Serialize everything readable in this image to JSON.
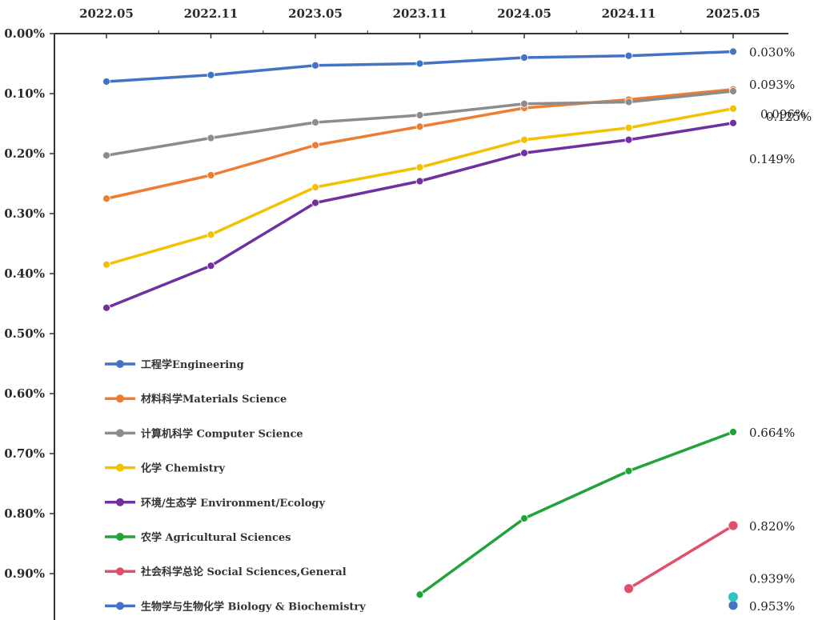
{
  "chart_data": {
    "type": "line",
    "y_reversed": true,
    "ylim": [
      0.0,
      0.97
    ],
    "x": [
      "2022.05",
      "2022.11",
      "2023.05",
      "2023.11",
      "2024.05",
      "2024.11",
      "2025.05"
    ],
    "yticks": [
      "0.00%",
      "0.10%",
      "0.20%",
      "0.30%",
      "0.40%",
      "0.50%",
      "0.60%",
      "0.70%",
      "0.80%",
      "0.90%"
    ],
    "ytick_values": [
      0.0,
      0.1,
      0.2,
      0.3,
      0.4,
      0.5,
      0.6,
      0.7,
      0.8,
      0.9
    ],
    "legend_position": "lower-left",
    "series": [
      {
        "name": "工程学Engineering",
        "color": "#4472C4",
        "values": [
          0.08,
          0.069,
          0.053,
          0.05,
          0.04,
          0.037,
          0.03
        ],
        "end_label": "0.030%"
      },
      {
        "name": "材料科学Materials Science",
        "color": "#ED7D31",
        "values": [
          0.275,
          0.236,
          0.186,
          0.155,
          0.124,
          0.11,
          0.093
        ],
        "end_label": "0.093%"
      },
      {
        "name": "计算机科学 Computer Science",
        "color": "#8C8C8C",
        "values": [
          0.203,
          0.174,
          0.148,
          0.136,
          0.117,
          0.114,
          0.096
        ],
        "end_label": "0.096%"
      },
      {
        "name": "化学 Chemistry",
        "color": "#F2C200",
        "values": [
          0.385,
          0.335,
          0.256,
          0.223,
          0.177,
          0.157,
          0.125
        ],
        "end_label": "0.125%"
      },
      {
        "name": "环境/生态学 Environment/Ecology",
        "color": "#7030A0",
        "values": [
          0.457,
          0.387,
          0.282,
          0.246,
          0.199,
          0.177,
          0.149
        ],
        "end_label": "0.149%"
      },
      {
        "name": "农学 Agricultural Sciences",
        "color": "#22A33A",
        "values": [
          null,
          null,
          null,
          0.935,
          0.808,
          0.729,
          0.664
        ],
        "end_label": "0.664%"
      },
      {
        "name": "社会科学总论 Social Sciences,General",
        "color": "#E0506A",
        "values": [
          null,
          null,
          null,
          null,
          null,
          0.925,
          0.82
        ],
        "end_label": "0.820%"
      },
      {
        "name": "生物学与生物化学 Biology & Biochemistry",
        "color": "#4472C4",
        "values": [
          null,
          null,
          null,
          null,
          null,
          null,
          0.953
        ],
        "end_label": "0.953%"
      }
    ],
    "extra_points": [
      {
        "x": "2025.05",
        "value": 0.939,
        "color": "#2EC4C4",
        "label": "0.939%"
      }
    ]
  }
}
